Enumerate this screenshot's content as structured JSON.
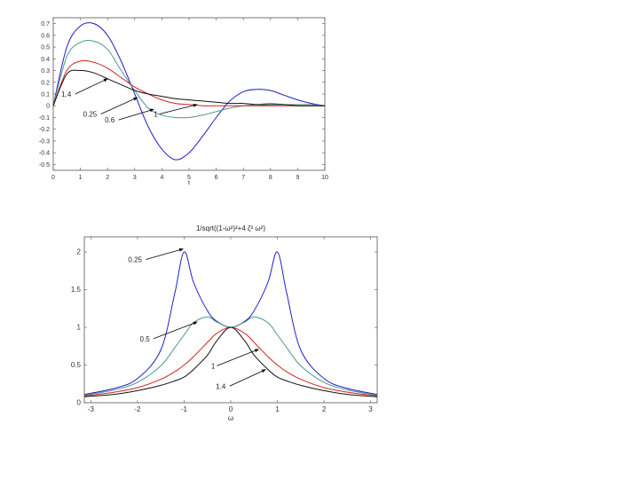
{
  "chart_data": [
    {
      "type": "line",
      "xlabel": "t",
      "ylabel": "",
      "xlim": [
        0,
        10
      ],
      "ylim": [
        -0.55,
        0.75
      ],
      "x_ticks": [
        "0",
        "1",
        "2",
        "3",
        "4",
        "5",
        "6",
        "7",
        "8",
        "9",
        "10"
      ],
      "y_ticks": [
        "0.7",
        "0.6",
        "0.5",
        "0.4",
        "0.3",
        "0.2",
        "0.1",
        "0",
        "-0.1",
        "-0.2",
        "-0.3",
        "-0.4",
        "-0.5"
      ],
      "x": [
        0,
        0.5,
        1,
        1.5,
        2,
        2.5,
        3,
        3.5,
        4,
        4.5,
        5,
        5.5,
        6,
        6.5,
        7,
        7.5,
        8,
        8.5,
        9,
        9.5,
        10
      ],
      "series": [
        {
          "color": "#1f1fc8",
          "values": [
            0,
            0.5,
            0.68,
            0.7,
            0.6,
            0.38,
            0.1,
            -0.18,
            -0.37,
            -0.46,
            -0.4,
            -0.26,
            -0.1,
            0.04,
            0.12,
            0.14,
            0.13,
            0.09,
            0.05,
            0.02,
            0
          ]
        },
        {
          "color": "#4a9a8a",
          "values": [
            0,
            0.42,
            0.54,
            0.55,
            0.48,
            0.3,
            0.13,
            -0.02,
            -0.08,
            -0.1,
            -0.1,
            -0.08,
            -0.05,
            -0.02,
            0,
            0.01,
            0.02,
            0.01,
            0.01,
            0.01,
            0
          ]
        },
        {
          "color": "#d42020",
          "values": [
            0,
            0.3,
            0.38,
            0.37,
            0.32,
            0.24,
            0.16,
            0.1,
            0.05,
            0.02,
            0.01,
            0,
            0,
            0,
            0,
            0,
            0,
            0,
            0,
            0,
            0
          ]
        },
        {
          "color": "#111111",
          "values": [
            0,
            0.27,
            0.3,
            0.28,
            0.23,
            0.18,
            0.13,
            0.1,
            0.08,
            0.06,
            0.05,
            0.04,
            0.03,
            0.02,
            0.02,
            0.01,
            0.01,
            0.01,
            0,
            0,
            0
          ]
        }
      ],
      "annotations": [
        {
          "text": "1.4",
          "x": 0.3,
          "y": 0.1,
          "arrow_to": [
            2.0,
            0.23
          ]
        },
        {
          "text": "0.25",
          "x": 1.1,
          "y": -0.07,
          "arrow_to": [
            3.1,
            0.07
          ]
        },
        {
          "text": "0.6",
          "x": 1.9,
          "y": -0.12,
          "arrow_to": [
            3.7,
            -0.03
          ]
        },
        {
          "text": "1",
          "x": 3.7,
          "y": -0.07,
          "arrow_to": [
            5.3,
            0.01
          ]
        }
      ]
    },
    {
      "type": "line",
      "title": "1/sqrt((1-ω²)²+4 ζ² ω²)",
      "xlabel": "ω",
      "ylabel": "",
      "xlim": [
        -3.14,
        3.14
      ],
      "ylim": [
        0,
        2.2
      ],
      "x_ticks": [
        "-3",
        "-2",
        "-1",
        "0",
        "1",
        "2",
        "3"
      ],
      "y_ticks": [
        "2",
        "1.5",
        "1",
        "0.5",
        "0"
      ],
      "x": [
        -3.14,
        -2.5,
        -2,
        -1.5,
        -1.2,
        -1,
        -0.8,
        -0.5,
        -0.3,
        0,
        0.3,
        0.5,
        0.8,
        1,
        1.2,
        1.5,
        2,
        2.5,
        3.14
      ],
      "series": [
        {
          "zeta": 0.25,
          "color": "#1f1fc8",
          "values": [
            0.11,
            0.19,
            0.32,
            0.7,
            1.45,
            2.0,
            1.6,
            1.22,
            1.08,
            1.0,
            1.08,
            1.22,
            1.6,
            2.0,
            1.45,
            0.7,
            0.32,
            0.19,
            0.11
          ]
        },
        {
          "zeta": 0.5,
          "color": "#4a9a8a",
          "values": [
            0.1,
            0.17,
            0.27,
            0.49,
            0.73,
            0.9,
            1.06,
            1.14,
            1.07,
            1.0,
            1.07,
            1.14,
            1.06,
            0.9,
            0.73,
            0.49,
            0.27,
            0.17,
            0.1
          ]
        },
        {
          "zeta": 1,
          "color": "#d42020",
          "values": [
            0.09,
            0.14,
            0.2,
            0.31,
            0.41,
            0.5,
            0.61,
            0.8,
            0.92,
            1.0,
            0.92,
            0.8,
            0.61,
            0.5,
            0.41,
            0.31,
            0.2,
            0.14,
            0.09
          ]
        },
        {
          "zeta": 1.4,
          "color": "#111111",
          "values": [
            0.08,
            0.11,
            0.16,
            0.23,
            0.29,
            0.34,
            0.44,
            0.63,
            0.82,
            1.0,
            0.82,
            0.63,
            0.44,
            0.34,
            0.29,
            0.23,
            0.16,
            0.11,
            0.08
          ]
        }
      ],
      "annotations": [
        {
          "text": "0.25",
          "x": -2.2,
          "y": 1.9,
          "arrow_to": [
            -1.02,
            2.04
          ]
        },
        {
          "text": "0.5",
          "x": -1.95,
          "y": 0.85,
          "arrow_to": [
            -0.72,
            1.07
          ]
        },
        {
          "text": "1",
          "x": -0.42,
          "y": 0.49,
          "arrow_to": [
            0.6,
            0.71
          ]
        },
        {
          "text": "1.4",
          "x": -0.32,
          "y": 0.22,
          "arrow_to": [
            0.75,
            0.44
          ]
        }
      ]
    }
  ]
}
